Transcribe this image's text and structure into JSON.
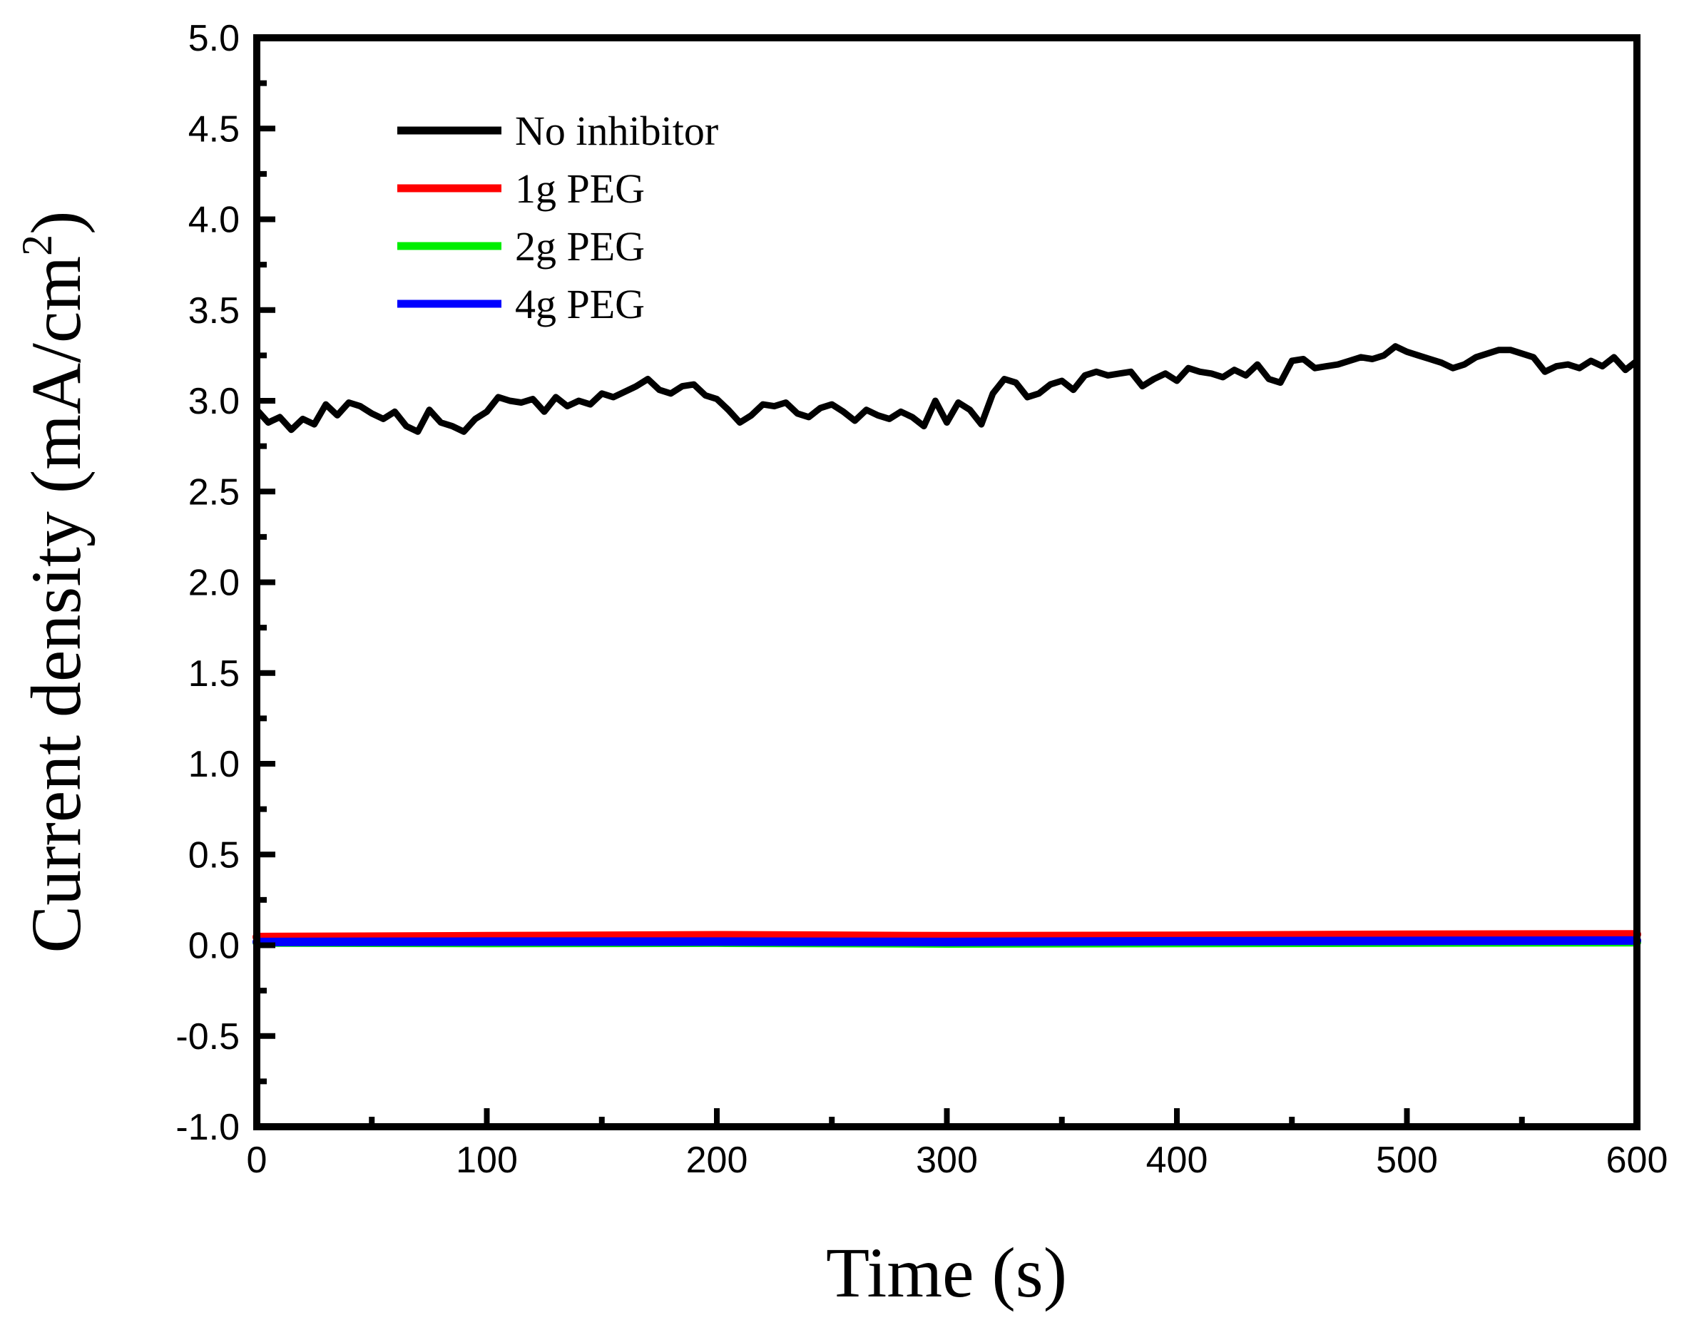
{
  "chart_data": {
    "type": "line",
    "title": "",
    "xlabel": "Time (s)",
    "ylabel_main": "Current density (mA/cm",
    "ylabel_sup": "2",
    "ylabel_close": ")",
    "xlim": [
      0,
      600
    ],
    "ylim": [
      -1.0,
      5.0
    ],
    "grid": false,
    "legend_position": "top-left",
    "x_ticks": [
      0,
      100,
      200,
      300,
      400,
      500,
      600
    ],
    "x_tick_labels": [
      "0",
      "100",
      "200",
      "300",
      "400",
      "500",
      "600"
    ],
    "y_ticks": [
      -1.0,
      -0.5,
      0.0,
      0.5,
      1.0,
      1.5,
      2.0,
      2.5,
      3.0,
      3.5,
      4.0,
      4.5,
      5.0
    ],
    "y_tick_labels": [
      "-1.0",
      "-0.5",
      "0.0",
      "0.5",
      "1.0",
      "1.5",
      "2.0",
      "2.5",
      "3.0",
      "3.5",
      "4.0",
      "4.5",
      "5.0"
    ],
    "series": [
      {
        "name": "No inhibitor",
        "color": "#000000",
        "x": [
          0,
          5,
          10,
          15,
          20,
          25,
          30,
          35,
          40,
          45,
          50,
          55,
          60,
          65,
          70,
          75,
          80,
          85,
          90,
          95,
          100,
          105,
          110,
          115,
          120,
          125,
          130,
          135,
          140,
          145,
          150,
          155,
          160,
          165,
          170,
          175,
          180,
          185,
          190,
          195,
          200,
          205,
          210,
          215,
          220,
          225,
          230,
          235,
          240,
          245,
          250,
          255,
          260,
          265,
          270,
          275,
          280,
          285,
          290,
          295,
          300,
          305,
          310,
          315,
          320,
          325,
          330,
          335,
          340,
          345,
          350,
          355,
          360,
          365,
          370,
          375,
          380,
          385,
          390,
          395,
          400,
          405,
          410,
          415,
          420,
          425,
          430,
          435,
          440,
          445,
          450,
          455,
          460,
          465,
          470,
          475,
          480,
          485,
          490,
          495,
          500,
          505,
          510,
          515,
          520,
          525,
          530,
          535,
          540,
          545,
          550,
          555,
          560,
          565,
          570,
          575,
          580,
          585,
          590,
          595,
          600
        ],
        "values": [
          2.95,
          2.88,
          2.91,
          2.84,
          2.9,
          2.87,
          2.98,
          2.92,
          2.99,
          2.97,
          2.93,
          2.9,
          2.94,
          2.86,
          2.83,
          2.95,
          2.88,
          2.86,
          2.83,
          2.9,
          2.94,
          3.02,
          3.0,
          2.99,
          3.01,
          2.94,
          3.02,
          2.97,
          3.0,
          2.98,
          3.04,
          3.02,
          3.05,
          3.08,
          3.12,
          3.06,
          3.04,
          3.08,
          3.09,
          3.03,
          3.01,
          2.95,
          2.88,
          2.92,
          2.98,
          2.97,
          2.99,
          2.93,
          2.91,
          2.96,
          2.98,
          2.94,
          2.89,
          2.95,
          2.92,
          2.9,
          2.94,
          2.91,
          2.86,
          3.0,
          2.88,
          2.99,
          2.95,
          2.87,
          3.04,
          3.12,
          3.1,
          3.02,
          3.04,
          3.09,
          3.11,
          3.06,
          3.14,
          3.16,
          3.14,
          3.15,
          3.16,
          3.08,
          3.12,
          3.15,
          3.11,
          3.18,
          3.16,
          3.15,
          3.13,
          3.17,
          3.14,
          3.2,
          3.12,
          3.1,
          3.22,
          3.23,
          3.18,
          3.19,
          3.2,
          3.22,
          3.24,
          3.23,
          3.25,
          3.3,
          3.27,
          3.25,
          3.23,
          3.21,
          3.18,
          3.2,
          3.24,
          3.26,
          3.28,
          3.28,
          3.26,
          3.24,
          3.16,
          3.19,
          3.2,
          3.18,
          3.22,
          3.19,
          3.24,
          3.17,
          3.22
        ]
      },
      {
        "name": "1g PEG",
        "color": "#ff0000",
        "x": [
          0,
          100,
          200,
          300,
          400,
          500,
          600
        ],
        "values": [
          0.045,
          0.05,
          0.055,
          0.05,
          0.052,
          0.058,
          0.06
        ]
      },
      {
        "name": "2g PEG",
        "color": "#00ee00",
        "x": [
          0,
          100,
          200,
          300,
          400,
          500,
          600
        ],
        "values": [
          0.015,
          0.012,
          0.014,
          0.01,
          0.012,
          0.015,
          0.017
        ]
      },
      {
        "name": "4g PEG",
        "color": "#0000ff",
        "x": [
          0,
          100,
          200,
          300,
          400,
          500,
          600
        ],
        "values": [
          0.018,
          0.02,
          0.02,
          0.018,
          0.022,
          0.024,
          0.026
        ]
      }
    ]
  }
}
